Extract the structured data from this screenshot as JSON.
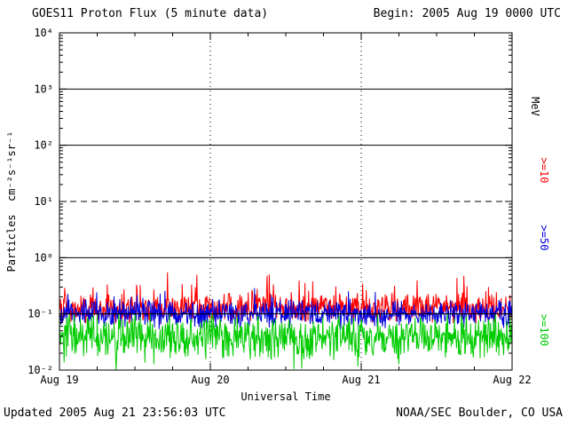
{
  "header": {
    "title": "GOES11 Proton Flux (5 minute data)",
    "begin_label": "Begin: 2005 Aug 19 0000 UTC"
  },
  "footer": {
    "updated": "Updated 2005 Aug 21 23:56:03 UTC",
    "source": "NOAA/SEC Boulder, CO USA"
  },
  "chart_data": {
    "type": "line",
    "title": "GOES11 Proton Flux (5 minute data)",
    "xlabel": "Universal Time",
    "ylabel": "Particles  cm⁻²s⁻¹sr⁻¹",
    "y_scale": "log10",
    "ylim_log10": [
      -2,
      4
    ],
    "y_exponents": [
      4,
      3,
      2,
      1,
      0,
      -1,
      -2
    ],
    "x_ticks": [
      "Aug 19",
      "Aug 20",
      "Aug 21",
      "Aug 22"
    ],
    "x_range_days": 3,
    "points_per_day": 288,
    "cadence": "5 minute",
    "legend_position": "right-rotated",
    "grid": {
      "h_solid_exponents": [
        3,
        2,
        0,
        -1
      ],
      "h_dashed_exponents": [
        1
      ],
      "v_dotted_days": [
        1,
        2
      ]
    },
    "right_axis_labels": [
      {
        "text": "MeV",
        "color": "#000000"
      },
      {
        "text": ">=10",
        "color": "#ff0000"
      },
      {
        "text": ">=50",
        "color": "#0000dd"
      },
      {
        "text": ">=100",
        "color": "#00cc00"
      }
    ],
    "series": [
      {
        "name": ">=10 MeV",
        "color": "#ff0000",
        "base_log10": -0.9,
        "noise_log10": 0.3,
        "spike_prob": 0.08,
        "spike_log10": 0.3,
        "seed": 101
      },
      {
        "name": ">=50 MeV",
        "color": "#0000dd",
        "base_log10": -1.0,
        "noise_log10": 0.28,
        "spike_prob": 0.04,
        "spike_log10": 0.25,
        "seed": 202
      },
      {
        "name": ">=100 MeV",
        "color": "#00cc00",
        "base_log10": -1.4,
        "noise_log10": 0.45,
        "spike_prob": 0.06,
        "spike_log10": -0.25,
        "seed": 303
      }
    ],
    "observed_levels": {
      ">=10 MeV": {
        "median_flux": 0.13,
        "range": [
          0.06,
          0.6
        ]
      },
      ">=50 MeV": {
        "median_flux": 0.1,
        "range": [
          0.03,
          0.3
        ]
      },
      ">=100 MeV": {
        "median_flux": 0.045,
        "range": [
          0.01,
          0.13
        ]
      }
    }
  }
}
